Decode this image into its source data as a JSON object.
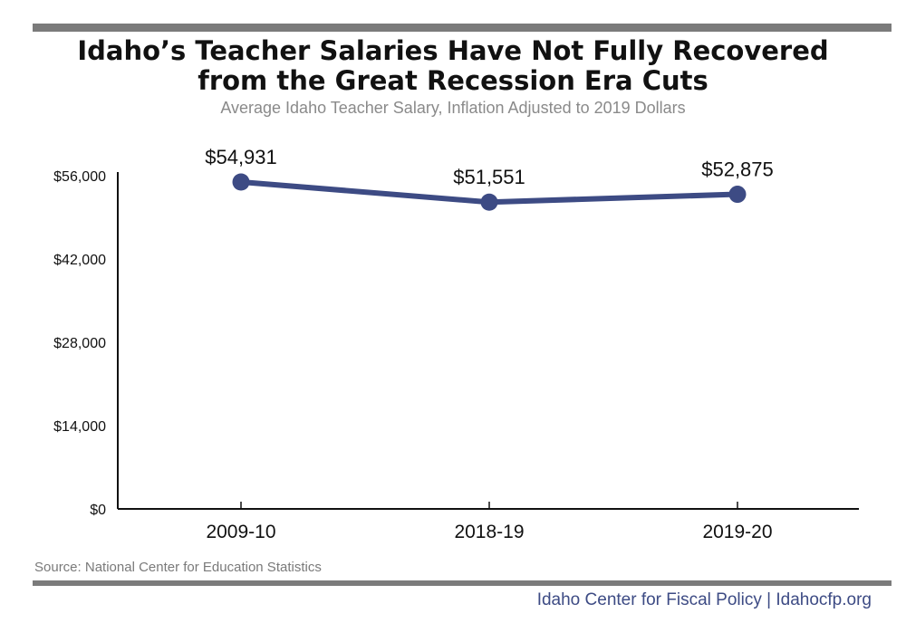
{
  "header": {
    "title_line1": "Idaho’s Teacher Salaries Have Not Fully Recovered",
    "title_line2": "from the Great Recession Era Cuts",
    "subtitle": "Average Idaho Teacher Salary, Inflation Adjusted to 2019 Dollars"
  },
  "footer": {
    "source": "Source: National Center for Education Statistics",
    "credit": "Idaho Center for Fiscal Policy | Idahocfp.org"
  },
  "colors": {
    "line": "#3d4b84",
    "rule": "#7b7b7b",
    "credit": "#3d4b84"
  },
  "chart_data": {
    "type": "line",
    "title": "Idaho’s Teacher Salaries Have Not Fully Recovered from the Great Recession Era Cuts",
    "subtitle": "Average Idaho Teacher Salary, Inflation Adjusted to 2019 Dollars",
    "xlabel": "",
    "ylabel": "",
    "categories": [
      "2009-10",
      "2018-19",
      "2019-20"
    ],
    "values": [
      54931,
      51551,
      52875
    ],
    "data_labels": [
      "$54,931",
      "$51,551",
      "$52,875"
    ],
    "yticks": [
      0,
      14000,
      28000,
      42000,
      56000
    ],
    "ytick_labels": [
      "$0",
      "$14,000",
      "$28,000",
      "$42,000",
      "$56,000"
    ],
    "ylim": [
      0,
      56000
    ],
    "grid": false,
    "legend": "none"
  }
}
